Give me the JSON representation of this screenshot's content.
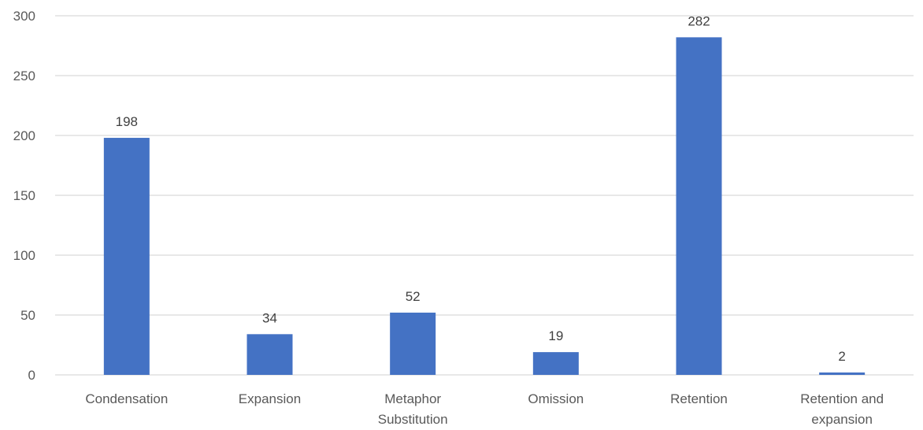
{
  "chart_data": {
    "type": "bar",
    "categories": [
      [
        "Condensation"
      ],
      [
        "Expansion"
      ],
      [
        "Metaphor",
        "Substitution"
      ],
      [
        "Omission"
      ],
      [
        "Retention"
      ],
      [
        "Retention and",
        "expansion"
      ]
    ],
    "values": [
      198,
      34,
      52,
      19,
      282,
      2
    ],
    "title": "",
    "xlabel": "",
    "ylabel": "",
    "ylim": [
      0,
      300
    ],
    "yticks": [
      0,
      50,
      100,
      150,
      200,
      250,
      300
    ],
    "grid": true,
    "legend": "none",
    "data_labels": true,
    "colors": {
      "bar": "#4472c4",
      "grid": "#d9d9d9",
      "tick_text": "#595959",
      "label_text": "#404040"
    }
  }
}
